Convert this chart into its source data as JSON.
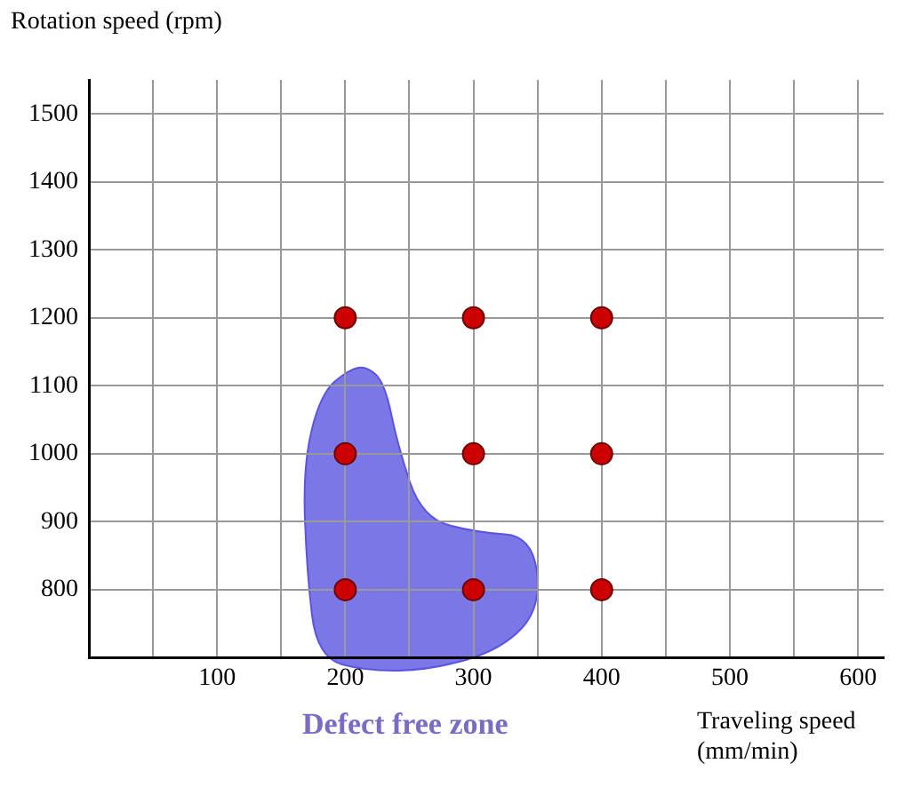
{
  "chart_data": {
    "type": "scatter",
    "xlabel": "Traveling speed (mm/min)",
    "ylabel": "Rotation speed (rpm)",
    "x": [
      200,
      200,
      200,
      300,
      300,
      300,
      400,
      400,
      400
    ],
    "values": [
      800,
      1000,
      1200,
      800,
      1000,
      1200,
      800,
      1000,
      1200
    ],
    "color": "#cc0000",
    "marker": "circle",
    "xlim": [
      0,
      620
    ],
    "ylim": [
      700,
      1550
    ],
    "xticks": [
      {
        "value": 50,
        "label": null
      },
      100,
      {
        "value": 150,
        "label": null
      },
      200,
      {
        "value": 250,
        "label": null
      },
      300,
      {
        "value": 350,
        "label": null
      },
      400,
      {
        "value": 450,
        "label": null
      },
      500,
      {
        "value": 550,
        "label": null
      },
      600
    ],
    "yticks": [
      800,
      900,
      1000,
      1100,
      1200,
      1300,
      1400,
      1500
    ],
    "grid": true,
    "legend": false,
    "annotations": [
      "Defect free zone"
    ]
  }
}
